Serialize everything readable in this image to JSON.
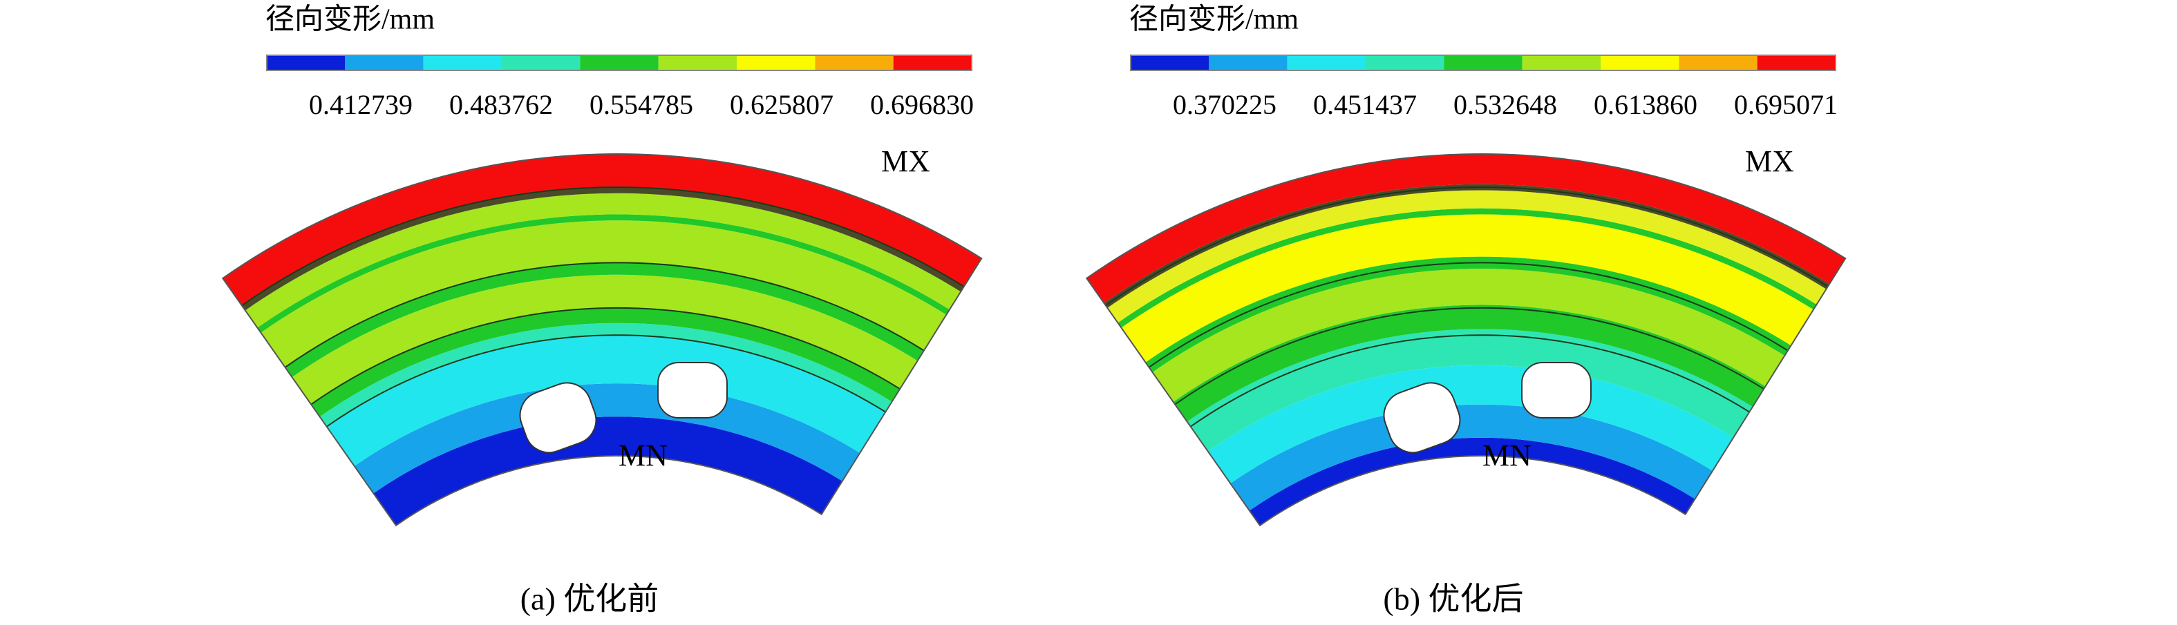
{
  "panels": [
    {
      "legend_title": "径向变形/mm",
      "legend_labels": [
        "0.412739",
        "0.483762",
        "0.554785",
        "0.625807",
        "0.696830"
      ],
      "max_label": "MX",
      "min_label": "MN",
      "caption": "(a) 优化前"
    },
    {
      "legend_title": "径向变形/mm",
      "legend_labels": [
        "0.370225",
        "0.451437",
        "0.532648",
        "0.613860",
        "0.695071"
      ],
      "max_label": "MX",
      "min_label": "MN",
      "caption": "(b) 优化后"
    }
  ]
}
